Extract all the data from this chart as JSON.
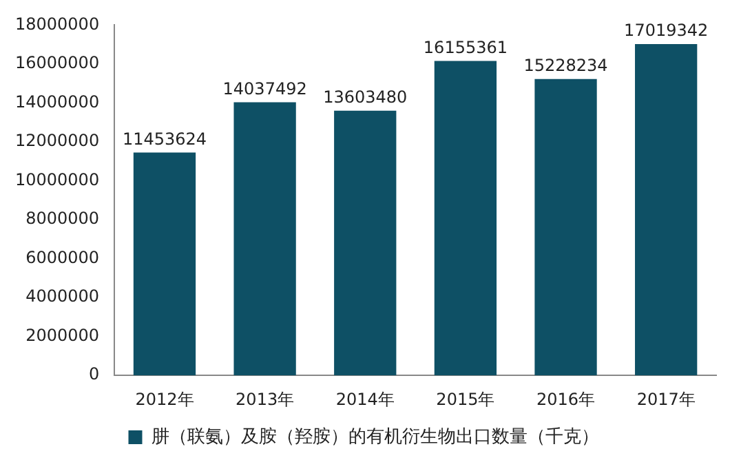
{
  "chart_data": {
    "type": "bar",
    "categories": [
      "2012年",
      "2013年",
      "2014年",
      "2015年",
      "2016年",
      "2017年"
    ],
    "series": [
      {
        "name": "肼（联氨）及胺（羟胺）的有机衍生物出口数量（千克）",
        "color": "#0e5065",
        "values": [
          11453624,
          14037492,
          13603480,
          16155361,
          15228234,
          17019342
        ]
      }
    ],
    "ylim": [
      0,
      18000000
    ],
    "yticks": [
      0,
      2000000,
      4000000,
      6000000,
      8000000,
      10000000,
      12000000,
      14000000,
      16000000,
      18000000
    ],
    "grid": false,
    "legend": "bottom",
    "data_labels": true
  }
}
